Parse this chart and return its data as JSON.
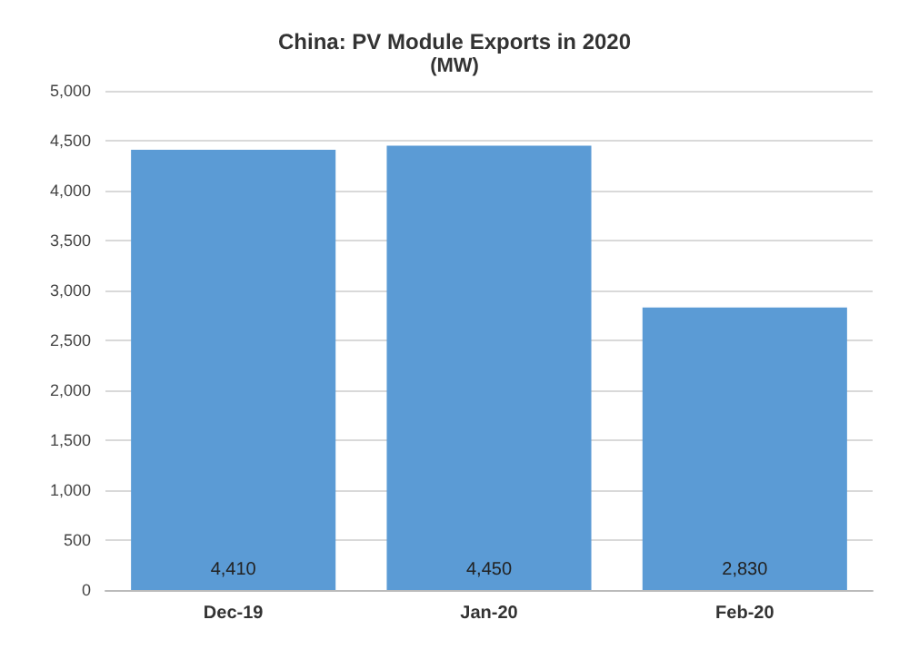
{
  "chart_data": {
    "type": "bar",
    "title": "China: PV Module Exports in 2020",
    "subtitle": "(MW)",
    "categories": [
      "Dec-19",
      "Jan-20",
      "Feb-20"
    ],
    "values": [
      4410,
      4450,
      2830
    ],
    "value_labels": [
      "4,410",
      "4,450",
      "2,830"
    ],
    "color": "#5b9bd5",
    "ylim": [
      0,
      5000
    ],
    "yticks": [
      0,
      500,
      {
        "value": 1000,
        "label": "1,000"
      },
      {
        "value": 1500,
        "label": "1,500"
      },
      {
        "value": 2000,
        "label": "2,000"
      },
      {
        "value": 2500,
        "label": "2,500"
      },
      {
        "value": 3000,
        "label": "3,000"
      },
      {
        "value": 3500,
        "label": "3,500"
      },
      {
        "value": 4000,
        "label": "4,000"
      },
      {
        "value": 4500,
        "label": "4,500"
      },
      {
        "value": 5000,
        "label": "5,000"
      }
    ],
    "grid": "y"
  }
}
